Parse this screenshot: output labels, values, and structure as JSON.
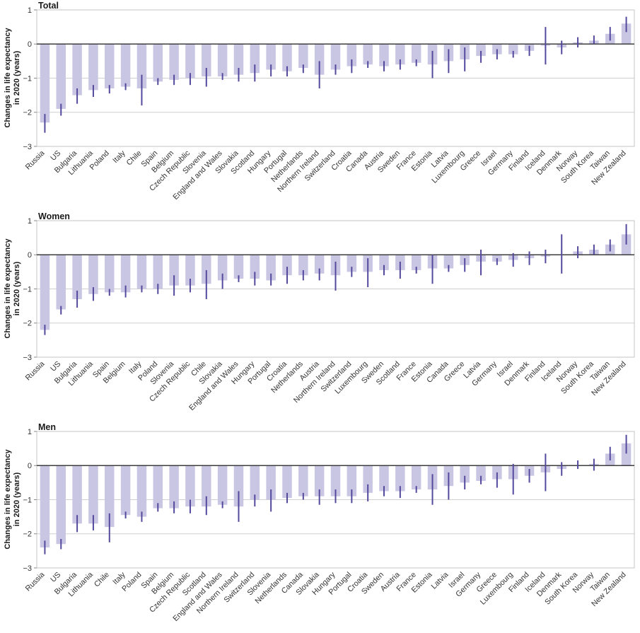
{
  "page": {
    "background": "#ffffff"
  },
  "style": {
    "bar_color": "#c9c6e3",
    "error_bar_color": "#534a9e",
    "zero_line_color": "#3d3d3d",
    "grid_color": "#cfcfcf",
    "border_color": "#c4c4c4",
    "tick_color": "#8a8a8a",
    "axis_text_color": "#333333"
  },
  "chart_data": [
    {
      "type": "bar",
      "title": "Total",
      "ylabel_line1": "Changes in life expectancy",
      "ylabel_line2": "in 2020 (years)",
      "ylim": [
        -3,
        1
      ],
      "yticks": [
        1,
        0,
        -1,
        -2,
        -3
      ],
      "grid": true,
      "legend": "none",
      "categories": [
        "Russia",
        "US",
        "Bulgaria",
        "Lithuania",
        "Poland",
        "Italy",
        "Chile",
        "Spain",
        "Belgium",
        "Czech Republic",
        "Slovenia",
        "England and Wales",
        "Slovakia",
        "Scotland",
        "Hungary",
        "Portugal",
        "Netherlands",
        "Northern Ireland",
        "Switzerland",
        "Croatia",
        "Canada",
        "Austria",
        "Sweden",
        "France",
        "Estonia",
        "Latvia",
        "Luxembourg",
        "Greece",
        "Israel",
        "Germany",
        "Finland",
        "Iceland",
        "Denmark",
        "Norway",
        "South Korea",
        "Taiwan",
        "New Zealand"
      ],
      "values": [
        -2.3,
        -1.9,
        -1.5,
        -1.35,
        -1.3,
        -1.25,
        -1.3,
        -1.1,
        -1.05,
        -1.0,
        -0.95,
        -0.95,
        -0.9,
        -0.85,
        -0.75,
        -0.8,
        -0.7,
        -0.9,
        -0.75,
        -0.65,
        -0.6,
        -0.65,
        -0.6,
        -0.55,
        -0.6,
        -0.5,
        -0.45,
        -0.35,
        -0.3,
        -0.3,
        -0.2,
        -0.05,
        -0.1,
        0.05,
        0.1,
        0.3,
        0.6
      ],
      "ci_low": [
        -2.6,
        -2.1,
        -1.75,
        -1.55,
        -1.45,
        -1.35,
        -1.8,
        -1.2,
        -1.2,
        -1.2,
        -1.25,
        -1.05,
        -1.1,
        -1.1,
        -0.95,
        -0.95,
        -0.85,
        -1.3,
        -0.9,
        -0.85,
        -0.7,
        -0.8,
        -0.75,
        -0.65,
        -1.0,
        -0.85,
        -0.8,
        -0.55,
        -0.45,
        -0.4,
        -0.35,
        -0.6,
        -0.3,
        -0.1,
        0.0,
        0.1,
        0.35
      ],
      "ci_high": [
        -2.05,
        -1.75,
        -1.3,
        -1.2,
        -1.2,
        -1.15,
        -0.9,
        -1.0,
        -0.9,
        -0.85,
        -0.7,
        -0.85,
        -0.7,
        -0.6,
        -0.6,
        -0.65,
        -0.6,
        -0.5,
        -0.6,
        -0.45,
        -0.5,
        -0.5,
        -0.45,
        -0.45,
        -0.2,
        -0.15,
        -0.1,
        -0.2,
        -0.15,
        -0.2,
        -0.05,
        0.5,
        0.1,
        0.2,
        0.25,
        0.5,
        0.8
      ]
    },
    {
      "type": "bar",
      "title": "Women",
      "ylabel_line1": "Changes in life expectancy",
      "ylabel_line2": "in 2020 (years)",
      "ylim": [
        -3,
        1
      ],
      "yticks": [
        1,
        0,
        -1,
        -2,
        -3
      ],
      "grid": true,
      "legend": "none",
      "categories": [
        "Russia",
        "US",
        "Bulgaria",
        "Lithuania",
        "Spain",
        "Belgium",
        "Italy",
        "Poland",
        "Slovenia",
        "Czech Republic",
        "Chile",
        "Slovakia",
        "England and Wales",
        "Hungary",
        "Portugal",
        "Croatia",
        "Netherlands",
        "Austria",
        "Northern Ireland",
        "Switzerland",
        "Luxembourg",
        "Sweden",
        "Scotland",
        "France",
        "Estonia",
        "Canada",
        "Greece",
        "Latvia",
        "Germany",
        "Israel",
        "Denmark",
        "Finland",
        "Iceland",
        "Norway",
        "South Korea",
        "Taiwan",
        "New Zealand"
      ],
      "values": [
        -2.2,
        -1.6,
        -1.3,
        -1.15,
        -1.1,
        -1.1,
        -1.0,
        -1.0,
        -0.9,
        -0.9,
        -0.85,
        -0.75,
        -0.7,
        -0.7,
        -0.75,
        -0.6,
        -0.6,
        -0.55,
        -0.6,
        -0.5,
        -0.5,
        -0.45,
        -0.45,
        -0.45,
        -0.4,
        -0.4,
        -0.3,
        -0.2,
        -0.2,
        -0.15,
        -0.1,
        -0.05,
        0.0,
        0.1,
        0.15,
        0.3,
        0.6
      ],
      "ci_low": [
        -2.35,
        -1.75,
        -1.55,
        -1.35,
        -1.2,
        -1.25,
        -1.1,
        -1.15,
        -1.2,
        -1.1,
        -1.3,
        -1.0,
        -0.8,
        -0.9,
        -0.9,
        -0.85,
        -0.75,
        -0.75,
        -1.05,
        -0.65,
        -0.95,
        -0.6,
        -0.7,
        -0.55,
        -0.85,
        -0.5,
        -0.5,
        -0.6,
        -0.3,
        -0.35,
        -0.3,
        -0.25,
        -0.55,
        -0.1,
        0.0,
        0.1,
        0.3
      ],
      "ci_high": [
        -2.05,
        -1.5,
        -1.05,
        -0.95,
        -1.0,
        -0.9,
        -0.9,
        -0.85,
        -0.6,
        -0.7,
        -0.45,
        -0.55,
        -0.6,
        -0.5,
        -0.55,
        -0.35,
        -0.45,
        -0.4,
        -0.2,
        -0.35,
        -0.1,
        -0.3,
        -0.2,
        -0.35,
        0.0,
        -0.3,
        -0.1,
        0.15,
        -0.1,
        0.05,
        0.1,
        0.15,
        0.6,
        0.25,
        0.3,
        0.45,
        0.9
      ]
    },
    {
      "type": "bar",
      "title": "Men",
      "ylabel_line1": "Changes in life expectancy",
      "ylabel_line2": "in 2020 (years)",
      "ylim": [
        -3,
        1
      ],
      "yticks": [
        1,
        0,
        -1,
        -2,
        -3
      ],
      "grid": true,
      "legend": "none",
      "categories": [
        "Russia",
        "US",
        "Bulgaria",
        "Lithuania",
        "Chile",
        "Italy",
        "Poland",
        "Spain",
        "Belgium",
        "Czech Republic",
        "Scotland",
        "England and Wales",
        "Northern Ireland",
        "Switzerland",
        "Slovenia",
        "Netherlands",
        "Canada",
        "Slovakia",
        "Hungary",
        "Portugal",
        "Croatia",
        "Sweden",
        "Austria",
        "France",
        "Estonia",
        "Latvia",
        "Israel",
        "Germany",
        "Greece",
        "Luxembourg",
        "Finland",
        "Iceland",
        "Denmark",
        "South Korea",
        "Norway",
        "Taiwan",
        "New Zealand"
      ],
      "values": [
        -2.4,
        -2.3,
        -1.7,
        -1.7,
        -1.8,
        -1.45,
        -1.5,
        -1.25,
        -1.25,
        -1.2,
        -1.2,
        -1.15,
        -1.2,
        -1.0,
        -1.0,
        -0.95,
        -0.9,
        -0.9,
        -0.9,
        -0.9,
        -0.8,
        -0.75,
        -0.75,
        -0.7,
        -0.7,
        -0.6,
        -0.5,
        -0.45,
        -0.4,
        -0.4,
        -0.3,
        -0.2,
        -0.1,
        0.0,
        0.05,
        0.35,
        0.65
      ],
      "ci_low": [
        -2.6,
        -2.45,
        -1.95,
        -1.9,
        -2.25,
        -1.55,
        -1.65,
        -1.35,
        -1.4,
        -1.4,
        -1.45,
        -1.25,
        -1.65,
        -1.2,
        -1.35,
        -1.1,
        -1.0,
        -1.15,
        -1.1,
        -1.1,
        -1.05,
        -0.9,
        -0.95,
        -0.8,
        -1.15,
        -1.0,
        -0.7,
        -0.55,
        -0.65,
        -0.85,
        -0.5,
        -0.75,
        -0.3,
        -0.1,
        -0.15,
        0.15,
        0.35
      ],
      "ci_high": [
        -2.2,
        -2.15,
        -1.45,
        -1.45,
        -1.4,
        -1.35,
        -1.35,
        -1.1,
        -1.05,
        -1.0,
        -0.9,
        -1.05,
        -0.75,
        -0.85,
        -0.7,
        -0.8,
        -0.8,
        -0.7,
        -0.7,
        -0.7,
        -0.55,
        -0.6,
        -0.6,
        -0.6,
        -0.25,
        -0.2,
        -0.3,
        -0.3,
        -0.2,
        0.05,
        -0.1,
        0.35,
        0.1,
        0.15,
        0.2,
        0.55,
        0.9
      ]
    }
  ]
}
